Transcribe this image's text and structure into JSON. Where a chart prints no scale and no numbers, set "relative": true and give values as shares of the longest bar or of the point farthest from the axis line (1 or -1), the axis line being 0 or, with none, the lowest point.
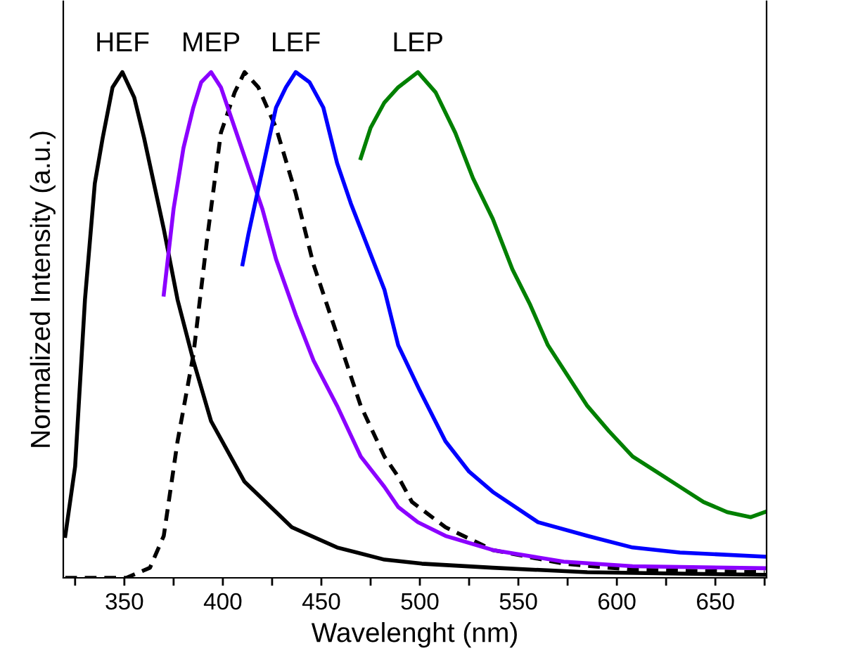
{
  "chart_data": {
    "type": "line",
    "relative": true,
    "xlabel": "Wavelenght (nm)",
    "ylabel": "Normalized Intensity (a.u.)",
    "xlim": [
      319,
      676
    ],
    "xticks": [
      {
        "value": 325,
        "label": null
      },
      350,
      {
        "value": 375,
        "label": null
      },
      400,
      {
        "value": 425,
        "label": null
      },
      450,
      {
        "value": 475,
        "label": null
      },
      500,
      {
        "value": 525,
        "label": null
      },
      550,
      {
        "value": 575,
        "label": null
      },
      600,
      {
        "value": 625,
        "label": null
      },
      650,
      {
        "value": 675,
        "label": null
      }
    ],
    "tick_labels": "x",
    "grid": false,
    "legend": false,
    "marker": "none",
    "series": [
      {
        "name": "HEF",
        "color": "#000000",
        "line_style": "solid",
        "x": [
          320,
          325,
          330,
          335,
          339,
          344,
          349,
          355,
          360,
          370,
          377,
          385,
          394,
          411,
          435,
          458,
          482,
          501,
          537,
          585,
          675
        ],
        "values": [
          0.083,
          0.22,
          0.55,
          0.78,
          0.87,
          0.97,
          1.0,
          0.95,
          0.87,
          0.69,
          0.55,
          0.43,
          0.31,
          0.19,
          0.1,
          0.06,
          0.036,
          0.028,
          0.02,
          0.011,
          0.006
        ]
      },
      {
        "color": "#000000",
        "line_style": "dashed",
        "x": [
          320,
          351,
          363,
          370,
          377,
          385,
          392,
          399,
          406,
          411,
          418,
          427,
          437,
          446,
          458,
          470,
          482,
          489,
          496,
          513,
          537,
          573,
          608,
          675
        ],
        "values": [
          0.0,
          0.0,
          0.02,
          0.083,
          0.27,
          0.44,
          0.67,
          0.88,
          0.96,
          1.0,
          0.97,
          0.89,
          0.76,
          0.62,
          0.48,
          0.34,
          0.24,
          0.2,
          0.15,
          0.1,
          0.055,
          0.028,
          0.016,
          0.011
        ]
      },
      {
        "name": "MEP",
        "color": "#8b00ff",
        "line_style": "solid",
        "x": [
          370,
          375,
          380,
          385,
          389,
          394,
          399,
          406,
          413,
          420,
          427,
          437,
          446,
          458,
          470,
          482,
          489,
          499,
          513,
          537,
          573,
          608,
          675
        ],
        "values": [
          0.56,
          0.73,
          0.85,
          0.93,
          0.98,
          1.0,
          0.97,
          0.89,
          0.81,
          0.73,
          0.63,
          0.52,
          0.43,
          0.34,
          0.24,
          0.18,
          0.14,
          0.11,
          0.083,
          0.055,
          0.032,
          0.023,
          0.019
        ]
      },
      {
        "name": "LEF",
        "color": "#0000ff",
        "line_style": "solid",
        "x": [
          410,
          413,
          418,
          423,
          427,
          432,
          437,
          444,
          451,
          458,
          465,
          473,
          482,
          489,
          500,
          513,
          525,
          537,
          560,
          585,
          608,
          632,
          675
        ],
        "values": [
          0.62,
          0.68,
          0.77,
          0.86,
          0.93,
          0.97,
          1.0,
          0.98,
          0.93,
          0.82,
          0.74,
          0.66,
          0.57,
          0.46,
          0.37,
          0.27,
          0.21,
          0.17,
          0.11,
          0.083,
          0.06,
          0.05,
          0.042
        ]
      },
      {
        "name": "LEP",
        "color": "#008000",
        "line_style": "solid",
        "x": [
          470,
          475,
          482,
          489,
          499,
          508,
          518,
          527,
          537,
          547,
          556,
          565,
          575,
          585,
          596,
          608,
          620,
          632,
          644,
          656,
          668,
          675
        ],
        "values": [
          0.83,
          0.89,
          0.94,
          0.97,
          1.0,
          0.96,
          0.88,
          0.79,
          0.71,
          0.61,
          0.54,
          0.46,
          0.4,
          0.34,
          0.29,
          0.24,
          0.21,
          0.18,
          0.15,
          0.13,
          0.12,
          0.13
        ]
      }
    ]
  }
}
